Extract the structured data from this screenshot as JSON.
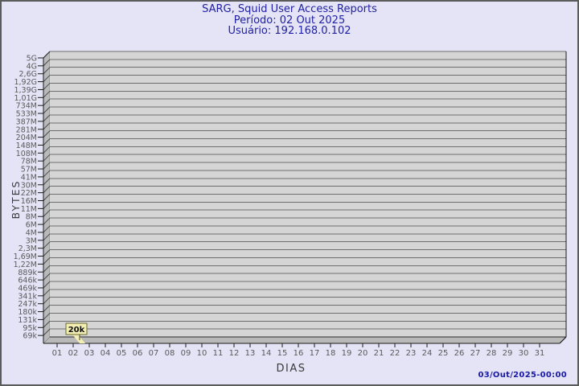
{
  "window": {
    "background": "#e4e4f6",
    "border_color": "#5b5b5b"
  },
  "header": {
    "title": "SARG, Squid User Access Reports",
    "period_label": "Período: 02 Out 2025",
    "user_label": "Usuário: 192.168.0.102",
    "text_color": "#2121a3"
  },
  "footer": {
    "timestamp": "03/Out/2025-00:00"
  },
  "chart_data": {
    "type": "line",
    "style": "gdchart-3d",
    "title": "SARG, Squid User Access Reports",
    "subtitle1": "Período: 02 Out 2025",
    "subtitle2": "Usuário: 192.168.0.102",
    "xlabel": "DIAS",
    "ylabel": "BYTES",
    "y_scale": "logarithmic",
    "y_tick_labels": [
      "5G",
      "4G",
      "2,6G",
      "1,92G",
      "1,39G",
      "1,01G",
      "734M",
      "533M",
      "387M",
      "281M",
      "204M",
      "148M",
      "108M",
      "78M",
      "57M",
      "41M",
      "30M",
      "22M",
      "16M",
      "11M",
      "8M",
      "6M",
      "4M",
      "3M",
      "2,3M",
      "1,69M",
      "1,22M",
      "889k",
      "646k",
      "469k",
      "341k",
      "247k",
      "180k",
      "131k",
      "95k",
      "69k"
    ],
    "x_tick_labels": [
      "01",
      "02",
      "03",
      "04",
      "05",
      "06",
      "07",
      "08",
      "09",
      "10",
      "11",
      "12",
      "13",
      "14",
      "15",
      "16",
      "17",
      "18",
      "19",
      "20",
      "21",
      "22",
      "23",
      "24",
      "25",
      "26",
      "27",
      "28",
      "29",
      "30",
      "31"
    ],
    "points": [
      {
        "day": "02",
        "label": "20k",
        "value_bytes": 20000
      }
    ],
    "grid": true,
    "legend": "none",
    "colors": {
      "plot_face": "#d5d5d5",
      "wall": "#b9b9b9",
      "gridline": "#6e6e6e",
      "axis": "#1a1a1a",
      "tick_text": "#5a5a5a",
      "axis_title_text": "#3a3a3a",
      "flag_fill": "#f2eeb4",
      "flag_border": "#6b6b2a",
      "flag_text": "#111111"
    }
  }
}
